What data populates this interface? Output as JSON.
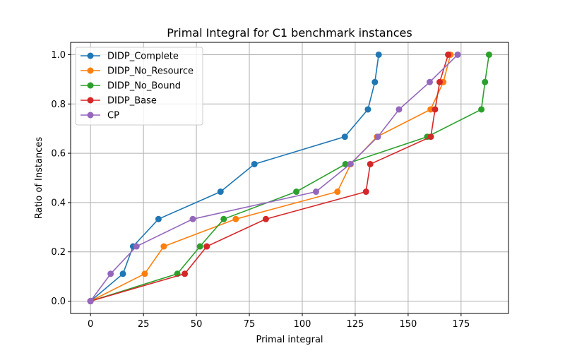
{
  "chart_data": {
    "type": "line",
    "title": "Primal Integral for C1 benchmark instances",
    "xlabel": "Primal integral",
    "ylabel": "Ratio of Instances",
    "xlim": [
      -9.4,
      197.4
    ],
    "ylim": [
      -0.05,
      1.05
    ],
    "x_ticks": [
      0,
      25,
      50,
      75,
      100,
      125,
      150,
      175
    ],
    "y_ticks": [
      0.0,
      0.2,
      0.4,
      0.6,
      0.8,
      1.0
    ],
    "x_tick_labels": [
      "0",
      "25",
      "50",
      "75",
      "100",
      "125",
      "150",
      "175"
    ],
    "y_tick_labels": [
      "0.0",
      "0.2",
      "0.4",
      "0.6",
      "0.8",
      "1.0"
    ],
    "grid": true,
    "legend_position": "top-left",
    "series": [
      {
        "name": "DIDP_Complete",
        "color": "#1f77b4",
        "x": [
          0,
          15.3,
          20.1,
          32.1,
          61.4,
          77.4,
          120.1,
          131.0,
          134.3,
          136.1
        ],
        "y": [
          0,
          0.111,
          0.222,
          0.333,
          0.444,
          0.556,
          0.667,
          0.778,
          0.889,
          1.0
        ]
      },
      {
        "name": "DIDP_No_Resource",
        "color": "#ff7f0e",
        "x": [
          0,
          25.6,
          34.6,
          68.6,
          116.6,
          122.9,
          135.3,
          160.6,
          166.6,
          170.0
        ],
        "y": [
          0,
          0.111,
          0.222,
          0.333,
          0.444,
          0.556,
          0.667,
          0.778,
          0.889,
          1.0
        ]
      },
      {
        "name": "DIDP_No_Bound",
        "color": "#2ca02c",
        "x": [
          0,
          41.0,
          51.7,
          62.9,
          97.2,
          120.4,
          159.0,
          184.6,
          186.3,
          188.2
        ],
        "y": [
          0,
          0.111,
          0.222,
          0.333,
          0.444,
          0.556,
          0.667,
          0.778,
          0.889,
          1.0
        ]
      },
      {
        "name": "DIDP_Base",
        "color": "#d62728",
        "x": [
          0,
          44.5,
          54.9,
          82.8,
          130.1,
          132.1,
          160.7,
          162.7,
          164.9,
          168.9
        ],
        "y": [
          0,
          0.111,
          0.222,
          0.333,
          0.444,
          0.556,
          0.667,
          0.778,
          0.889,
          1.0
        ]
      },
      {
        "name": "CP",
        "color": "#9467bd",
        "x": [
          0,
          9.5,
          21.7,
          48.3,
          106.5,
          122.6,
          135.7,
          145.7,
          160.2,
          173.4
        ],
        "y": [
          0,
          0.111,
          0.222,
          0.333,
          0.444,
          0.556,
          0.667,
          0.778,
          0.889,
          1.0
        ]
      }
    ]
  }
}
